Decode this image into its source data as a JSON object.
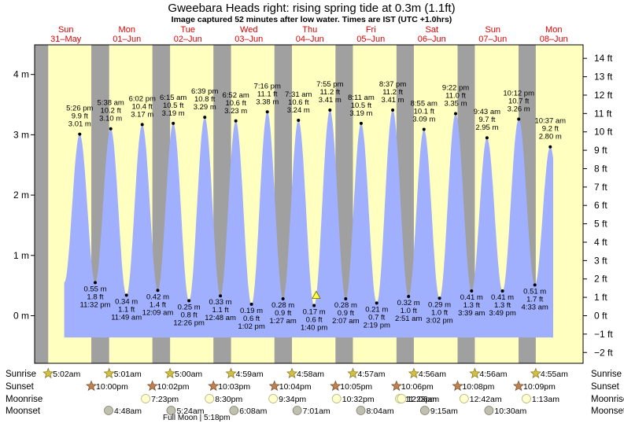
{
  "header": {
    "title": "Gweebara Heads right: rising  spring tide at 0.3m (1.1ft)",
    "subtitle": "Image captured 52 minutes after low water. Times are IST (UTC +1.0hrs)"
  },
  "days": [
    {
      "dow": "Sun",
      "date": "31–May"
    },
    {
      "dow": "Mon",
      "date": "01–Jun"
    },
    {
      "dow": "Tue",
      "date": "02–Jun"
    },
    {
      "dow": "Wed",
      "date": "03–Jun"
    },
    {
      "dow": "Thu",
      "date": "04–Jun"
    },
    {
      "dow": "Fri",
      "date": "05–Jun"
    },
    {
      "dow": "Sat",
      "date": "06–Jun"
    },
    {
      "dow": "Sun",
      "date": "07–Jun"
    },
    {
      "dow": "Mon",
      "date": "08–Jun"
    }
  ],
  "chart_data": {
    "type": "area",
    "title": "Gweebara Heads right: rising  spring tide at 0.3m (1.1ft)",
    "x_unit": "hours from 00:00 31-May (IST)",
    "y_left": {
      "label": "m",
      "range": [
        -0.6,
        4.5
      ],
      "ticks": [
        0,
        1,
        2,
        3,
        4
      ],
      "tick_labels": [
        "0 m",
        "1 m",
        "2 m",
        "3 m",
        "4 m"
      ]
    },
    "y_right": {
      "label": "ft",
      "ticks": [
        -2,
        -1,
        0,
        1,
        2,
        3,
        4,
        5,
        6,
        7,
        8,
        9,
        10,
        11,
        12,
        13,
        14
      ],
      "tick_labels": [
        "−2 ft",
        "−1 ft",
        "0 ft",
        "1 ft",
        "2 ft",
        "3 ft",
        "4 ft",
        "5 ft",
        "6 ft",
        "7 ft",
        "8 ft",
        "9 ft",
        "10 ft",
        "11 ft",
        "12 ft",
        "13 ft",
        "14 ft"
      ]
    },
    "tides": [
      {
        "type": "high",
        "t": 17.433,
        "time": "5:26 pm",
        "ft": "9.9 ft",
        "m": "3.01 m",
        "value": 3.01
      },
      {
        "type": "low",
        "t": 23.533,
        "time": "11:32 pm",
        "ft": "1.8 ft",
        "m": "0.55 m",
        "value": 0.55
      },
      {
        "type": "high",
        "t": 29.633,
        "time": "5:38 am",
        "ft": "10.2 ft",
        "m": "3.10 m",
        "value": 3.1
      },
      {
        "type": "low",
        "t": 35.817,
        "time": "11:49 am",
        "ft": "1.1 ft",
        "m": "0.34 m",
        "value": 0.34
      },
      {
        "type": "high",
        "t": 42.033,
        "time": "6:02 pm",
        "ft": "10.4 ft",
        "m": "3.17 m",
        "value": 3.17
      },
      {
        "type": "low",
        "t": 48.15,
        "time": "12:09 am",
        "ft": "1.4 ft",
        "m": "0.42 m",
        "value": 0.42
      },
      {
        "type": "high",
        "t": 54.25,
        "time": "6:15 am",
        "ft": "10.5 ft",
        "m": "3.19 m",
        "value": 3.19
      },
      {
        "type": "low",
        "t": 60.433,
        "time": "12:26 pm",
        "ft": "0.8 ft",
        "m": "0.25 m",
        "value": 0.25
      },
      {
        "type": "high",
        "t": 66.65,
        "time": "6:39 pm",
        "ft": "10.8 ft",
        "m": "3.29 m",
        "value": 3.29
      },
      {
        "type": "low",
        "t": 72.8,
        "time": "12:48 am",
        "ft": "1.1 ft",
        "m": "0.33 m",
        "value": 0.33
      },
      {
        "type": "high",
        "t": 78.867,
        "time": "6:52 am",
        "ft": "10.6 ft",
        "m": "3.23 m",
        "value": 3.23
      },
      {
        "type": "low",
        "t": 85.033,
        "time": "1:02 pm",
        "ft": "0.6 ft",
        "m": "0.19 m",
        "value": 0.19
      },
      {
        "type": "high",
        "t": 91.267,
        "time": "7:16 pm",
        "ft": "11.1 ft",
        "m": "3.38 m",
        "value": 3.38
      },
      {
        "type": "low",
        "t": 97.45,
        "time": "1:27 am",
        "ft": "0.9 ft",
        "m": "0.28 m",
        "value": 0.28
      },
      {
        "type": "high",
        "t": 103.517,
        "time": "7:31 am",
        "ft": "10.6 ft",
        "m": "3.24 m",
        "value": 3.24
      },
      {
        "type": "low",
        "t": 109.667,
        "time": "1:40 pm",
        "ft": "0.6 ft",
        "m": "0.17 m",
        "value": 0.17
      },
      {
        "type": "high",
        "t": 115.917,
        "time": "7:55 pm",
        "ft": "11.2 ft",
        "m": "3.41 m",
        "value": 3.41
      },
      {
        "type": "low",
        "t": 122.117,
        "time": "2:07 am",
        "ft": "0.9 ft",
        "m": "0.28 m",
        "value": 0.28
      },
      {
        "type": "high",
        "t": 128.183,
        "time": "8:11 am",
        "ft": "10.5 ft",
        "m": "3.19 m",
        "value": 3.19
      },
      {
        "type": "low",
        "t": 134.317,
        "time": "2:19 pm",
        "ft": "0.7 ft",
        "m": "0.21 m",
        "value": 0.21
      },
      {
        "type": "high",
        "t": 140.617,
        "time": "8:37 pm",
        "ft": "11.2 ft",
        "m": "3.41 m",
        "value": 3.41
      },
      {
        "type": "low",
        "t": 146.85,
        "time": "2:51 am",
        "ft": "1.0 ft",
        "m": "0.32 m",
        "value": 0.32
      },
      {
        "type": "high",
        "t": 152.917,
        "time": "8:55 am",
        "ft": "10.1 ft",
        "m": "3.09 m",
        "value": 3.09
      },
      {
        "type": "low",
        "t": 159.033,
        "time": "3:02 pm",
        "ft": "1.0 ft",
        "m": "0.29 m",
        "value": 0.29
      },
      {
        "type": "high",
        "t": 165.367,
        "time": "9:22 pm",
        "ft": "11.0 ft",
        "m": "3.35 m",
        "value": 3.35
      },
      {
        "type": "low",
        "t": 171.65,
        "time": "3:39 am",
        "ft": "1.3 ft",
        "m": "0.41 m",
        "value": 0.41
      },
      {
        "type": "high",
        "t": 177.717,
        "time": "9:43 am",
        "ft": "9.7 ft",
        "m": "2.95 m",
        "value": 2.95
      },
      {
        "type": "low",
        "t": 183.817,
        "time": "3:49 pm",
        "ft": "1.3 ft",
        "m": "0.41 m",
        "value": 0.41
      },
      {
        "type": "high",
        "t": 190.2,
        "time": "10:12 pm",
        "ft": "10.7 ft",
        "m": "3.26 m",
        "value": 3.26
      },
      {
        "type": "low",
        "t": 196.55,
        "time": "4:33 am",
        "ft": "1.7 ft",
        "m": "0.51 m",
        "value": 0.51
      },
      {
        "type": "high",
        "t": 202.617,
        "time": "10:37 am",
        "ft": "9.2 ft",
        "m": "2.80 m",
        "value": 2.8
      }
    ],
    "current": {
      "t": 110.533,
      "value": 0.3
    },
    "colors": {
      "day": "#ffffc0",
      "night": "#a0a0a0",
      "tide": "#a0b0ff",
      "axis": "#000000",
      "date": "#e00000"
    }
  },
  "sun": {
    "sunrise": [
      "5:02am",
      "5:01am",
      "5:00am",
      "4:59am",
      "4:58am",
      "4:57am",
      "4:56am",
      "4:56am",
      "4:55am"
    ],
    "sunset": [
      "10:00pm",
      "10:02pm",
      "10:03pm",
      "10:04pm",
      "10:05pm",
      "10:06pm",
      "10:08pm",
      "10:09pm"
    ]
  },
  "moon": {
    "moonrise": [
      {
        "day": 1,
        "label": "7:23pm"
      },
      {
        "day": 2,
        "label": "8:30pm"
      },
      {
        "day": 3,
        "label": "9:34pm"
      },
      {
        "day": 4,
        "label": "10:32pm"
      },
      {
        "day": 5,
        "label": "11:23pm"
      },
      {
        "day": 6,
        "label": "12:06am"
      },
      {
        "day": 7,
        "label": "12:42am"
      },
      {
        "day": 8,
        "label": "1:13am"
      }
    ],
    "moonset": [
      {
        "day": 1,
        "label": "4:48am"
      },
      {
        "day": 2,
        "label": "5:24am"
      },
      {
        "day": 3,
        "label": "6:08am"
      },
      {
        "day": 4,
        "label": "7:01am"
      },
      {
        "day": 5,
        "label": "8:04am"
      },
      {
        "day": 6,
        "label": "9:15am"
      },
      {
        "day": 7,
        "label": "10:30am"
      }
    ],
    "full_moon": "Full Moon | 5:18pm"
  },
  "legend": {
    "sunrise": "Sunrise",
    "sunset": "Sunset",
    "moonrise": "Moonrise",
    "moonset": "Moonset"
  }
}
